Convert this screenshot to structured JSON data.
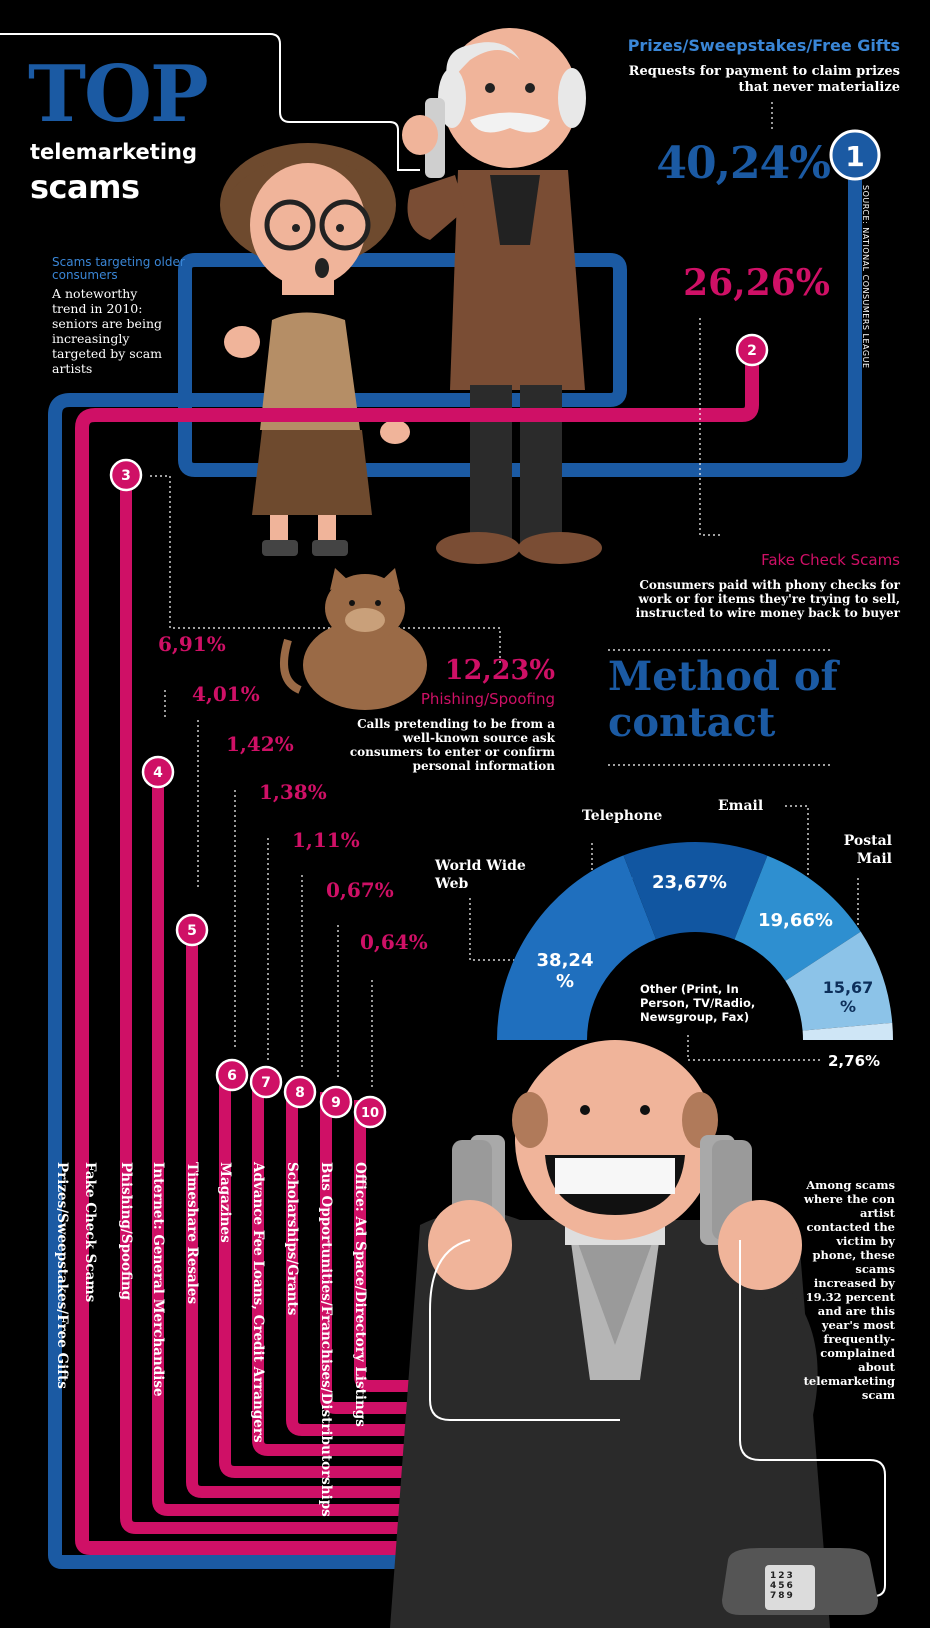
{
  "title": {
    "top": "TOP",
    "line2": "telemarketing",
    "line3": "scams"
  },
  "older": {
    "heading": "Scams targeting older consumers",
    "body": "A noteworthy trend in 2010: seniors are being increasingly targeted by scam artists"
  },
  "source": "SOURCE: NATIONAL CONSUMERS LEAGUE",
  "scams": [
    {
      "rank": "1",
      "name": "Prizes/Sweepstakes/Free Gifts",
      "pct": "40,24%",
      "desc": "Requests for payment to claim prizes that never materialize"
    },
    {
      "rank": "2",
      "name": "Fake Check Scams",
      "pct": "26,26%",
      "desc": "Consumers paid with phony checks for work or for items they're trying to sell, instructed to wire money back to buyer"
    },
    {
      "rank": "3",
      "name": "Phishing/Spoofing",
      "pct": "12,23%",
      "desc": "Calls pretending to be from a well-known source ask consumers to enter or confirm personal information"
    },
    {
      "rank": "4",
      "name": "Internet: General Merchandise",
      "pct": "6,91%"
    },
    {
      "rank": "5",
      "name": "Timeshare Resales",
      "pct": "4,01%"
    },
    {
      "rank": "6",
      "name": "Magazines",
      "pct": "1,42%"
    },
    {
      "rank": "7",
      "name": "Advance Fee Loans, Credit Arrangers",
      "pct": "1,38%"
    },
    {
      "rank": "8",
      "name": "Scholarships/Grants",
      "pct": "1,11%"
    },
    {
      "rank": "9",
      "name": "Bus Opportunities/Franchises/Distributorships",
      "pct": "0,67%"
    },
    {
      "rank": "10",
      "name": "Office: Ad Space/Directory Listings",
      "pct": "0,64%"
    }
  ],
  "method": {
    "title": "Method of contact",
    "segments": [
      {
        "label": "World Wide Web",
        "pct": "38,24 %",
        "value": 38.24,
        "color": "#1f6fbe"
      },
      {
        "label": "Telephone",
        "pct": "23,67%",
        "value": 23.67,
        "color": "#1156a1"
      },
      {
        "label": "Email",
        "pct": "19,66%",
        "value": 19.66,
        "color": "#2e8fd0"
      },
      {
        "label": "Postal Mail",
        "pct": "15,67 %",
        "value": 15.67,
        "color": "#8cc3e8"
      },
      {
        "label": "Other (Print, In Person, TV/Radio, Newsgroup, Fax)",
        "pct": "2,76%",
        "value": 2.76,
        "color": "#cfe6f6"
      }
    ]
  },
  "phone_note": "Among scams where the con artist contacted the victim by phone, these scams increased by 19.32 percent and are this year's most frequently-complained about telemarketing scam",
  "phone_keys": "123 456 789",
  "colors": {
    "blue": "#1b5aa3",
    "magenta": "#cf1066",
    "background": "#000000"
  }
}
